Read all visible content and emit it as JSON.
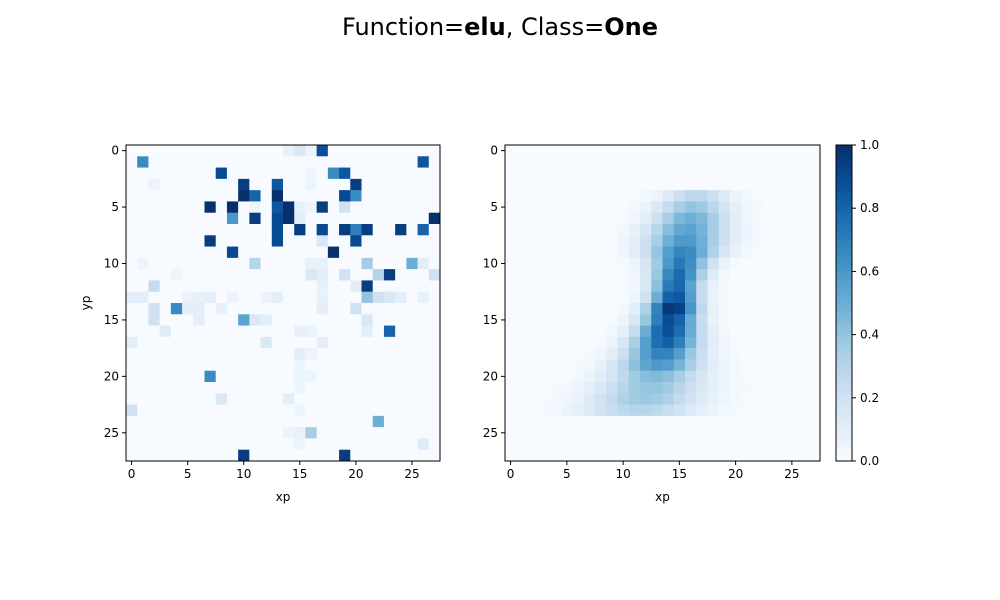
{
  "suptitle": {
    "prefix1": "Function=",
    "function": "elu",
    "prefix2": ", Class=",
    "class": "One"
  },
  "colormap": {
    "name": "Blues",
    "stops": [
      "#f7fbff",
      "#deebf7",
      "#c6dbef",
      "#9ecae1",
      "#6baed6",
      "#4292c6",
      "#2171b5",
      "#08519c",
      "#08306b"
    ]
  },
  "chart_data": [
    {
      "type": "heatmap",
      "xlabel": "xp",
      "ylabel": "yp",
      "shape": [
        28,
        28
      ],
      "xticks": [
        0,
        5,
        10,
        15,
        20,
        25
      ],
      "yticks": [
        0,
        5,
        10,
        15,
        20,
        25
      ],
      "vmin": 0,
      "vmax": 1,
      "cells": [
        [
          0,
          14,
          0.08
        ],
        [
          0,
          15,
          0.15
        ],
        [
          0,
          16,
          0.05
        ],
        [
          0,
          17,
          0.88
        ],
        [
          1,
          1,
          0.65
        ],
        [
          1,
          26,
          0.85
        ],
        [
          2,
          8,
          0.9
        ],
        [
          2,
          16,
          0.05
        ],
        [
          2,
          18,
          0.65
        ],
        [
          2,
          19,
          0.85
        ],
        [
          3,
          2,
          0.06
        ],
        [
          3,
          10,
          0.95
        ],
        [
          3,
          13,
          0.85
        ],
        [
          3,
          16,
          0.05
        ],
        [
          3,
          20,
          0.95
        ],
        [
          4,
          10,
          1.0
        ],
        [
          4,
          11,
          0.8
        ],
        [
          4,
          13,
          1.0
        ],
        [
          4,
          19,
          0.9
        ],
        [
          4,
          20,
          0.65
        ],
        [
          5,
          7,
          1.0
        ],
        [
          5,
          9,
          1.0
        ],
        [
          5,
          11,
          0.05
        ],
        [
          5,
          13,
          0.85
        ],
        [
          5,
          14,
          1.0
        ],
        [
          5,
          15,
          0.08
        ],
        [
          5,
          16,
          0.05
        ],
        [
          5,
          17,
          0.95
        ],
        [
          5,
          19,
          0.2
        ],
        [
          6,
          9,
          0.6
        ],
        [
          6,
          11,
          0.95
        ],
        [
          6,
          13,
          0.9
        ],
        [
          6,
          14,
          1.0
        ],
        [
          6,
          15,
          0.1
        ],
        [
          6,
          27,
          1.0
        ],
        [
          7,
          13,
          0.9
        ],
        [
          7,
          15,
          0.95
        ],
        [
          7,
          17,
          0.9
        ],
        [
          7,
          19,
          0.95
        ],
        [
          7,
          20,
          0.7
        ],
        [
          7,
          21,
          0.95
        ],
        [
          7,
          24,
          0.95
        ],
        [
          7,
          26,
          0.8
        ],
        [
          8,
          7,
          0.95
        ],
        [
          8,
          13,
          0.9
        ],
        [
          8,
          17,
          0.15
        ],
        [
          8,
          20,
          0.9
        ],
        [
          9,
          9,
          0.9
        ],
        [
          9,
          18,
          1.0
        ],
        [
          10,
          1,
          0.05
        ],
        [
          10,
          11,
          0.3
        ],
        [
          10,
          16,
          0.08
        ],
        [
          10,
          17,
          0.08
        ],
        [
          10,
          21,
          0.35
        ],
        [
          10,
          25,
          0.5
        ],
        [
          10,
          26,
          0.1
        ],
        [
          11,
          4,
          0.05
        ],
        [
          11,
          16,
          0.15
        ],
        [
          11,
          17,
          0.1
        ],
        [
          11,
          19,
          0.2
        ],
        [
          11,
          22,
          0.3
        ],
        [
          11,
          23,
          0.95
        ],
        [
          11,
          27,
          0.2
        ],
        [
          12,
          2,
          0.25
        ],
        [
          12,
          17,
          0.08
        ],
        [
          12,
          20,
          0.1
        ],
        [
          12,
          21,
          0.95
        ],
        [
          13,
          0,
          0.1
        ],
        [
          13,
          1,
          0.1
        ],
        [
          13,
          5,
          0.06
        ],
        [
          13,
          6,
          0.08
        ],
        [
          13,
          7,
          0.1
        ],
        [
          13,
          9,
          0.06
        ],
        [
          13,
          12,
          0.06
        ],
        [
          13,
          13,
          0.1
        ],
        [
          13,
          17,
          0.08
        ],
        [
          13,
          21,
          0.4
        ],
        [
          13,
          22,
          0.2
        ],
        [
          13,
          23,
          0.15
        ],
        [
          13,
          24,
          0.1
        ],
        [
          13,
          26,
          0.08
        ],
        [
          14,
          2,
          0.2
        ],
        [
          14,
          4,
          0.65
        ],
        [
          14,
          5,
          0.1
        ],
        [
          14,
          6,
          0.1
        ],
        [
          14,
          8,
          0.08
        ],
        [
          14,
          17,
          0.1
        ],
        [
          14,
          20,
          0.2
        ],
        [
          15,
          2,
          0.2
        ],
        [
          15,
          6,
          0.1
        ],
        [
          15,
          10,
          0.55
        ],
        [
          15,
          11,
          0.15
        ],
        [
          15,
          12,
          0.1
        ],
        [
          15,
          21,
          0.15
        ],
        [
          16,
          3,
          0.12
        ],
        [
          16,
          15,
          0.08
        ],
        [
          16,
          16,
          0.06
        ],
        [
          16,
          21,
          0.1
        ],
        [
          16,
          23,
          0.8
        ],
        [
          17,
          0,
          0.1
        ],
        [
          17,
          12,
          0.15
        ],
        [
          17,
          17,
          0.1
        ],
        [
          18,
          15,
          0.1
        ],
        [
          18,
          16,
          0.06
        ],
        [
          19,
          15,
          0.05
        ],
        [
          20,
          7,
          0.65
        ],
        [
          20,
          15,
          0.06
        ],
        [
          20,
          16,
          0.05
        ],
        [
          21,
          15,
          0.05
        ],
        [
          22,
          8,
          0.15
        ],
        [
          22,
          14,
          0.1
        ],
        [
          23,
          0,
          0.2
        ],
        [
          23,
          15,
          0.05
        ],
        [
          24,
          22,
          0.5
        ],
        [
          25,
          14,
          0.06
        ],
        [
          25,
          15,
          0.08
        ],
        [
          25,
          16,
          0.35
        ],
        [
          26,
          15,
          0.06
        ],
        [
          26,
          26,
          0.12
        ],
        [
          27,
          10,
          0.95
        ],
        [
          27,
          19,
          0.95
        ]
      ]
    },
    {
      "type": "heatmap",
      "xlabel": "xp",
      "ylabel": "",
      "shape": [
        28,
        28
      ],
      "xticks": [
        0,
        5,
        10,
        15,
        20,
        25
      ],
      "yticks": [
        0,
        5,
        10,
        15,
        20,
        25
      ],
      "vmin": 0,
      "vmax": 1,
      "colorbar_ticks": [
        "0.0",
        "0.2",
        "0.4",
        "0.6",
        "0.8",
        "1.0"
      ],
      "stroke_centers": [
        [
          4,
          16.5
        ],
        [
          5,
          16.2
        ],
        [
          6,
          16.0
        ],
        [
          7,
          15.7
        ],
        [
          8,
          15.5
        ],
        [
          9,
          15.3
        ],
        [
          10,
          15.1
        ],
        [
          11,
          14.9
        ],
        [
          12,
          14.7
        ],
        [
          13,
          14.6
        ],
        [
          14,
          14.4
        ],
        [
          15,
          14.2
        ],
        [
          16,
          14.0
        ],
        [
          17,
          13.8
        ],
        [
          18,
          13.5
        ],
        [
          19,
          13.2
        ],
        [
          20,
          12.9
        ],
        [
          21,
          12.5
        ],
        [
          22,
          12.0
        ],
        [
          23,
          11.5
        ]
      ],
      "stroke_peaks": [
        0.28,
        0.4,
        0.5,
        0.55,
        0.6,
        0.68,
        0.72,
        0.78,
        0.8,
        0.88,
        1.0,
        0.9,
        0.88,
        0.82,
        0.7,
        0.6,
        0.45,
        0.4,
        0.38,
        0.3
      ],
      "stroke_widths": [
        2.0,
        2.2,
        2.3,
        2.4,
        2.4,
        2.2,
        1.8,
        1.6,
        1.5,
        1.5,
        1.6,
        1.7,
        1.9,
        2.1,
        2.3,
        2.6,
        2.9,
        3.2,
        3.4,
        3.6
      ]
    }
  ]
}
